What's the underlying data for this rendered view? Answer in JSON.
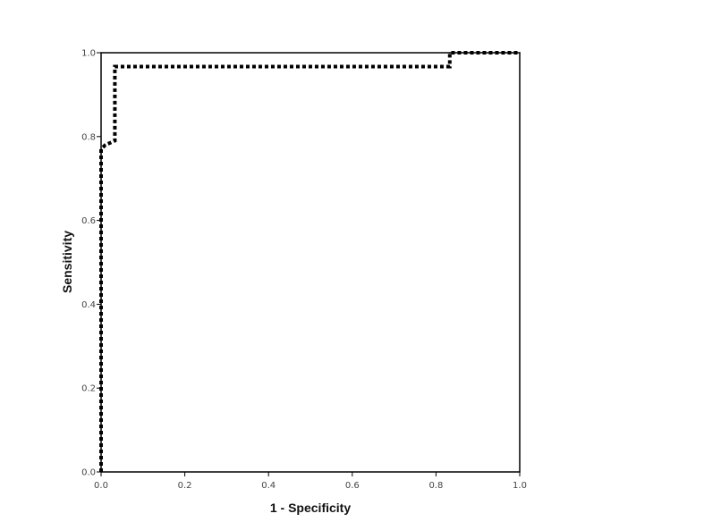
{
  "chart_data": {
    "type": "line",
    "title": "",
    "xlabel": "1 - Specificity",
    "ylabel": "Sensitivity",
    "xlim": [
      0.0,
      1.0
    ],
    "ylim": [
      0.0,
      1.0
    ],
    "x_ticks": [
      "0.0",
      "0.2",
      "0.4",
      "0.6",
      "0.8",
      "1.0"
    ],
    "y_ticks": [
      "0.0",
      "0.2",
      "0.4",
      "0.6",
      "0.8",
      "1.0"
    ],
    "grid": false,
    "legend": "none",
    "series": [
      {
        "style": "dotted",
        "color": "#000000",
        "x": [
          0.0,
          0.0,
          0.01,
          0.033,
          0.033,
          0.833,
          0.833,
          1.0
        ],
        "y": [
          0.0,
          0.77,
          0.78,
          0.79,
          0.967,
          0.967,
          1.0,
          1.0
        ]
      }
    ]
  }
}
